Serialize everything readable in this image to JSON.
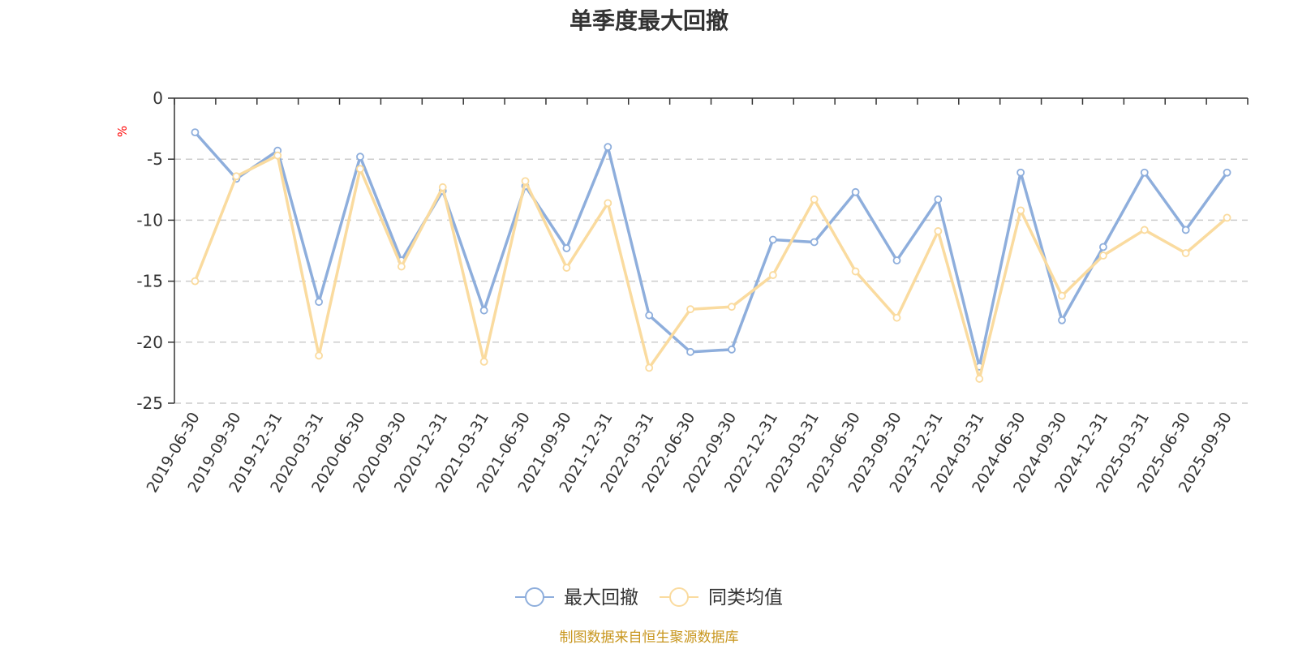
{
  "chart_data": {
    "type": "line",
    "title": "单季度最大回撤",
    "ylabel": "%",
    "xlabel": "",
    "ylim": [
      -25,
      0
    ],
    "yticks": [
      0,
      -5,
      -10,
      -15,
      -20,
      -25
    ],
    "grid": true,
    "legend_position": "bottom-center",
    "categories": [
      "2019-06-30",
      "2019-09-30",
      "2019-12-31",
      "2020-03-31",
      "2020-06-30",
      "2020-09-30",
      "2020-12-31",
      "2021-03-31",
      "2021-06-30",
      "2021-09-30",
      "2021-12-31",
      "2022-03-31",
      "2022-06-30",
      "2022-09-30",
      "2022-12-31",
      "2023-03-31",
      "2023-06-30",
      "2023-09-30",
      "2023-12-31",
      "2024-03-31",
      "2024-06-30",
      "2024-09-30",
      "2024-12-31",
      "2025-03-31",
      "2025-06-30",
      "2025-09-30"
    ],
    "series": [
      {
        "name": "最大回撤",
        "color": "#8eaedc",
        "values": [
          -2.8,
          -6.6,
          -4.3,
          -16.7,
          -4.8,
          -13.3,
          -7.6,
          -17.4,
          -7.2,
          -12.3,
          -4.0,
          -17.8,
          -20.8,
          -20.6,
          -11.6,
          -11.8,
          -7.7,
          -13.3,
          -8.3,
          -22.0,
          -6.1,
          -18.2,
          -12.2,
          -6.1,
          -10.8,
          -6.1
        ]
      },
      {
        "name": "同类均值",
        "color": "#fadb9f",
        "values": [
          -15.0,
          -6.4,
          -4.7,
          -21.1,
          -5.8,
          -13.8,
          -7.3,
          -21.6,
          -6.8,
          -13.9,
          -8.6,
          -22.1,
          -17.3,
          -17.1,
          -14.5,
          -8.3,
          -14.2,
          -18.0,
          -10.9,
          -23.0,
          -9.2,
          -16.2,
          -12.9,
          -10.8,
          -12.7,
          -9.8
        ]
      }
    ]
  },
  "source_note": "制图数据来自恒生聚源数据库"
}
